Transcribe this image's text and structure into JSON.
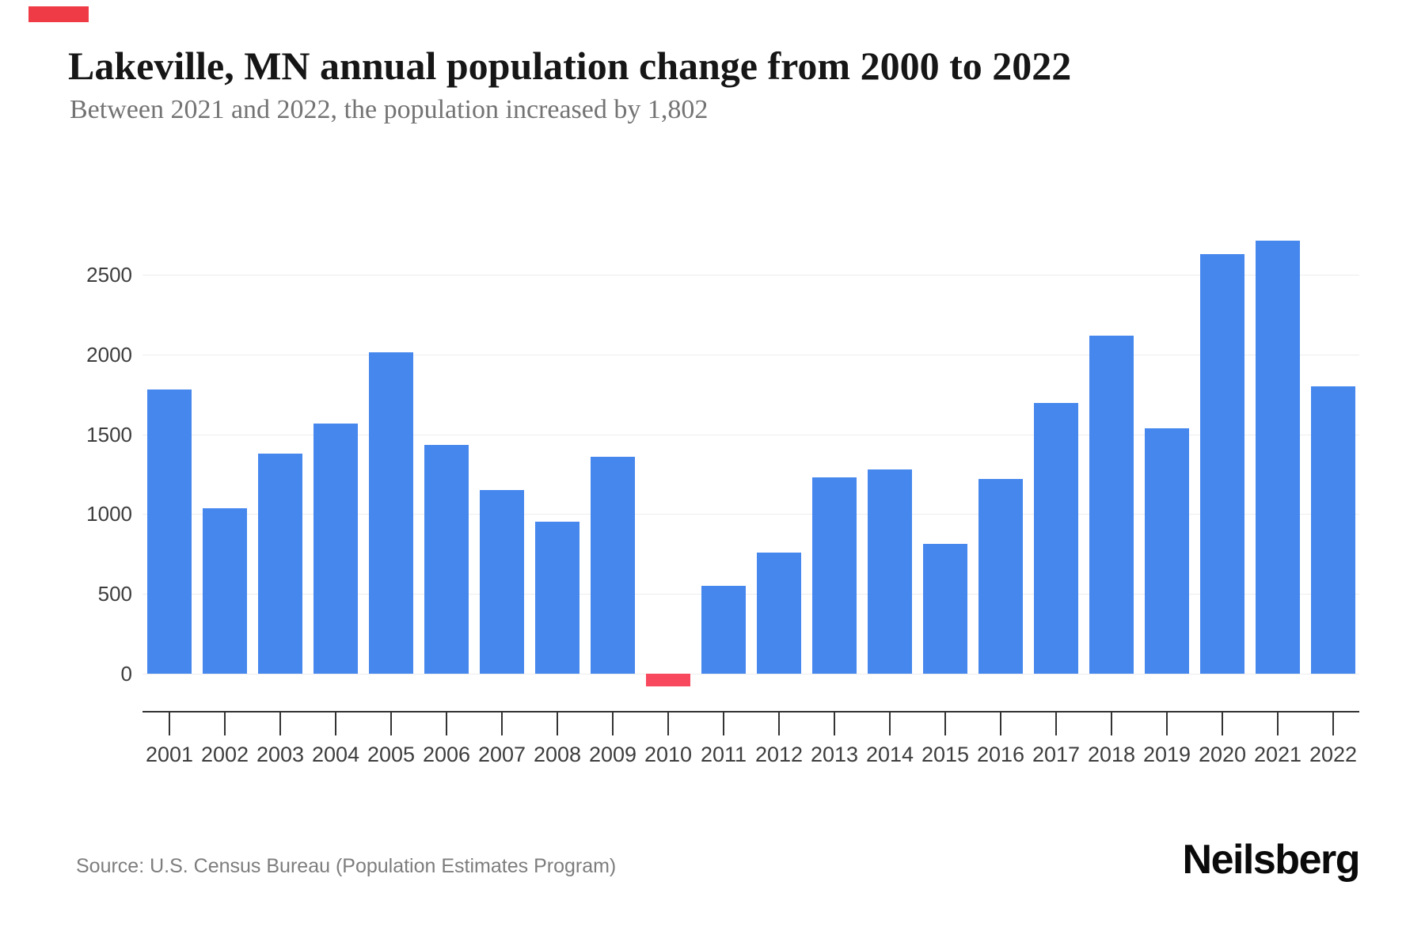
{
  "header": {
    "title": "Lakeville, MN annual population change from 2000 to 2022",
    "subtitle": "Between 2021 and 2022, the population increased by 1,802"
  },
  "chart_data": {
    "type": "bar",
    "title": "Lakeville, MN annual population change from 2000 to 2022",
    "subtitle": "Between 2021 and 2022, the population increased by 1,802",
    "categories": [
      "2001",
      "2002",
      "2003",
      "2004",
      "2005",
      "2006",
      "2007",
      "2008",
      "2009",
      "2010",
      "2011",
      "2012",
      "2013",
      "2014",
      "2015",
      "2016",
      "2017",
      "2018",
      "2019",
      "2020",
      "2021",
      "2022"
    ],
    "values": [
      1780,
      1035,
      1380,
      1565,
      2015,
      1435,
      1150,
      950,
      1360,
      -80,
      550,
      760,
      1230,
      1280,
      815,
      1220,
      1695,
      2120,
      1540,
      2630,
      2715,
      1802
    ],
    "xlabel": "",
    "ylabel": "",
    "yticks": [
      0,
      500,
      1000,
      1500,
      2000,
      2500
    ],
    "ylim": [
      -240,
      2780
    ],
    "grid": true,
    "legend": false,
    "bar_color": "#4687ee",
    "negative_bar_color": "#f8485e"
  },
  "colors": {
    "bar_positive": "#4687ee",
    "bar_negative": "#f8485e",
    "gridline": "#ededed",
    "axis": "#333333",
    "red_marker": "#ef3b46"
  },
  "footer": {
    "source": "Source: U.S. Census Bureau (Population Estimates Program)",
    "brand": "Neilsberg"
  }
}
